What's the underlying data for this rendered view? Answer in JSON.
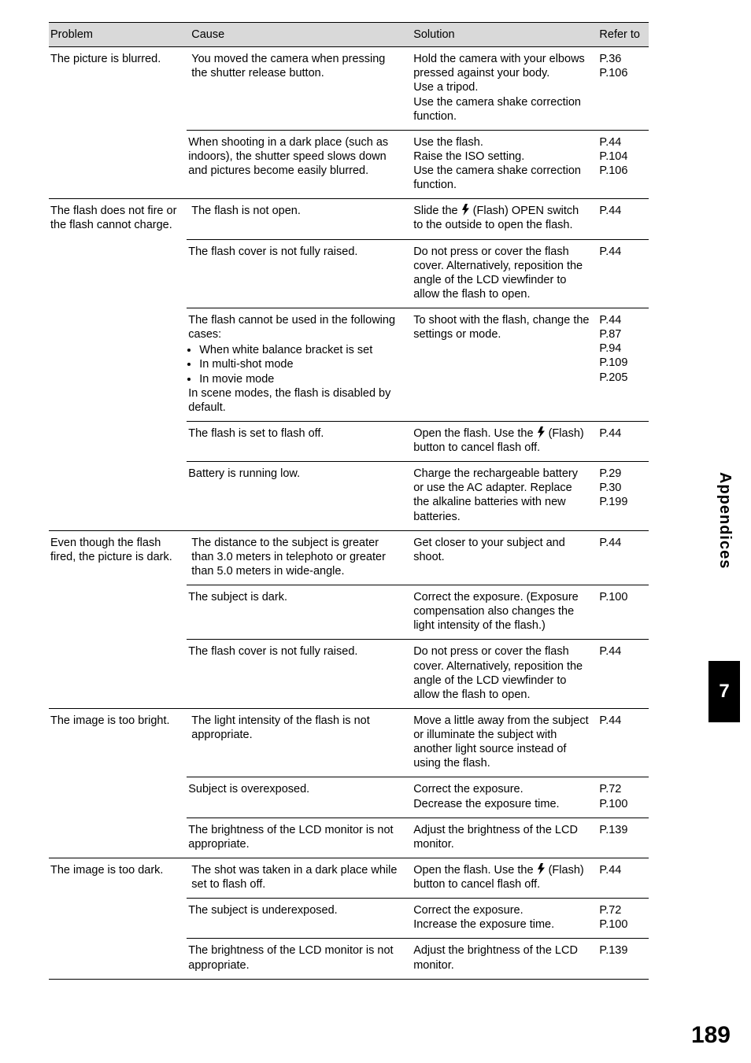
{
  "colors": {
    "header_bg": "#d9d9d9",
    "border": "#000000",
    "text": "#000000",
    "tab_bg": "#000000",
    "tab_fg": "#ffffff"
  },
  "headers": {
    "problem": "Problem",
    "cause": "Cause",
    "solution": "Solution",
    "refer": "Refer to"
  },
  "side_tab": "Appendices",
  "side_num": "7",
  "page_number": "189",
  "flash_svg_label": "flash-icon",
  "rows": [
    {
      "problem": "The picture is blurred.",
      "subrows": [
        {
          "cause": "You moved the camera when pressing the shutter release button.",
          "solution": "Hold the camera with your elbows pressed against your body.\nUse a tripod.\nUse the camera shake correction function.",
          "ref": "P.36\nP.106"
        },
        {
          "cause": "When shooting in a dark place (such as indoors), the shutter speed slows down and pictures become easily blurred.",
          "solution": "Use the flash.\nRaise the ISO setting.\nUse the camera shake correction function.",
          "ref": "P.44\nP.104\nP.106"
        }
      ]
    },
    {
      "problem": "The flash does not fire or the flash cannot charge.",
      "subrows": [
        {
          "cause": "The flash is not open.",
          "solution_pre": "Slide the ",
          "solution_post": " (Flash) OPEN switch to the outside to open the flash.",
          "has_flash_icon": true,
          "ref": "P.44"
        },
        {
          "cause": "The flash cover is not fully raised.",
          "solution": "Do not press or cover the flash cover. Alternatively, reposition the angle of the LCD viewfinder to allow the flash to open.",
          "ref": "P.44"
        },
        {
          "cause_intro": "The flash cannot be used in the following cases:",
          "cause_bullets": [
            "When white balance bracket is set",
            "In multi-shot mode",
            "In movie mode"
          ],
          "cause_outro": "In scene modes, the flash is disabled by default.",
          "solution": "To shoot with the flash, change the settings or mode.",
          "ref": "P.44\nP.87\nP.94\nP.109\nP.205"
        },
        {
          "cause": "The flash is set to flash off.",
          "solution_pre": "Open the flash. Use the ",
          "solution_post": " (Flash) button to cancel flash off.",
          "has_flash_icon": true,
          "ref": "P.44"
        },
        {
          "cause": "Battery is running low.",
          "solution": "Charge the rechargeable battery or use the AC adapter. Replace the alkaline batteries with new batteries.",
          "ref": "P.29\nP.30\nP.199"
        }
      ]
    },
    {
      "problem": "Even though the flash fired, the picture is dark.",
      "subrows": [
        {
          "cause": "The distance to the subject is greater than 3.0 meters in telephoto or greater than 5.0 meters in wide-angle.",
          "solution": "Get closer to your subject and shoot.",
          "ref": "P.44"
        },
        {
          "cause": "The subject is dark.",
          "solution": "Correct the exposure. (Exposure compensation also changes the light intensity of the flash.)",
          "ref": "P.100"
        },
        {
          "cause": "The flash cover is not fully raised.",
          "solution": "Do not press or cover the flash cover. Alternatively, reposition the angle of the LCD viewfinder to allow the flash to open.",
          "ref": "P.44"
        }
      ]
    },
    {
      "problem": "The image is too bright.",
      "subrows": [
        {
          "cause": "The light intensity of the flash is not appropriate.",
          "solution": "Move a little away from the subject or illuminate the subject with another light source instead of using the flash.",
          "ref": "P.44"
        },
        {
          "cause": "Subject is overexposed.",
          "solution": "Correct the exposure.\nDecrease the exposure time.",
          "ref": "P.72\nP.100"
        },
        {
          "cause": "The brightness of the LCD monitor is not appropriate.",
          "solution": "Adjust the brightness of the LCD monitor.",
          "ref": "P.139"
        }
      ]
    },
    {
      "problem": "The image is too dark.",
      "subrows": [
        {
          "cause": "The shot was taken in a dark place while set to flash off.",
          "solution_pre": "Open the flash. Use the ",
          "solution_post": " (Flash) button to cancel flash off.",
          "has_flash_icon": true,
          "ref": "P.44"
        },
        {
          "cause": "The subject is underexposed.",
          "solution": "Correct the exposure.\nIncrease the exposure time.",
          "ref": "P.72\nP.100"
        },
        {
          "cause": "The brightness of the LCD monitor is not appropriate.",
          "solution": "Adjust the brightness of the LCD monitor.",
          "ref": "P.139"
        }
      ]
    }
  ]
}
